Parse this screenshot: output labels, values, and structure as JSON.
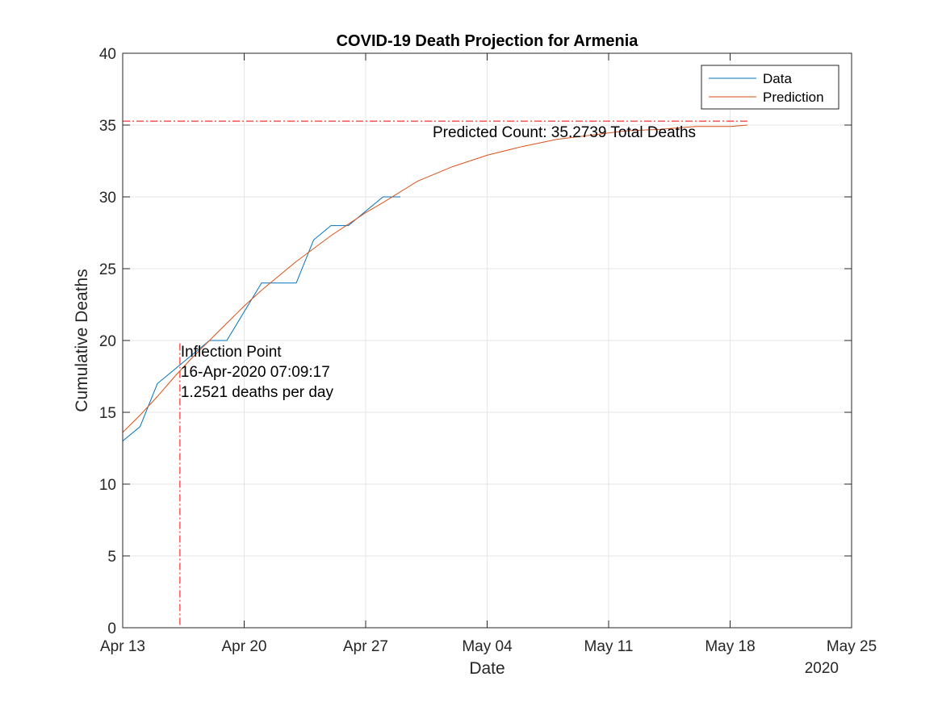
{
  "chart_data": {
    "type": "line",
    "title": "COVID-19 Death Projection for Armenia",
    "xlabel": "Date",
    "ylabel": "Cumulative Deaths",
    "x_axis_year_label": "2020",
    "xlim": [
      "2020-04-13",
      "2020-05-25"
    ],
    "ylim": [
      0,
      40
    ],
    "x_ticks": [
      {
        "date": "2020-04-13",
        "label": "Apr 13"
      },
      {
        "date": "2020-04-20",
        "label": "Apr 20"
      },
      {
        "date": "2020-04-27",
        "label": "Apr 27"
      },
      {
        "date": "2020-05-04",
        "label": "May 04"
      },
      {
        "date": "2020-05-11",
        "label": "May 11"
      },
      {
        "date": "2020-05-18",
        "label": "May 18"
      },
      {
        "date": "2020-05-25",
        "label": "May 25"
      }
    ],
    "y_ticks": [
      0,
      5,
      10,
      15,
      20,
      25,
      30,
      35,
      40
    ],
    "grid": true,
    "legend_position": "top-right",
    "series": [
      {
        "name": "Data",
        "color": "#0072BD",
        "x": [
          "2020-04-13",
          "2020-04-14",
          "2020-04-15",
          "2020-04-16",
          "2020-04-17",
          "2020-04-18",
          "2020-04-19",
          "2020-04-20",
          "2020-04-21",
          "2020-04-22",
          "2020-04-23",
          "2020-04-24",
          "2020-04-25",
          "2020-04-26",
          "2020-04-27",
          "2020-04-28",
          "2020-04-29"
        ],
        "y": [
          13,
          14,
          17,
          18,
          19,
          20,
          20,
          22,
          24,
          24,
          24,
          27,
          28,
          28,
          29,
          30,
          30
        ]
      },
      {
        "name": "Prediction",
        "color": "#D95319",
        "x": [
          "2020-04-13",
          "2020-04-14",
          "2020-04-15",
          "2020-04-16",
          "2020-04-17",
          "2020-04-18",
          "2020-04-19",
          "2020-04-20",
          "2020-04-21",
          "2020-04-22",
          "2020-04-23",
          "2020-04-24",
          "2020-04-25",
          "2020-04-26",
          "2020-04-27",
          "2020-04-28",
          "2020-04-30",
          "2020-05-02",
          "2020-05-04",
          "2020-05-06",
          "2020-05-08",
          "2020-05-10",
          "2020-05-12",
          "2020-05-14",
          "2020-05-16",
          "2020-05-18",
          "2020-05-19"
        ],
        "y": [
          13.6,
          14.8,
          16.1,
          17.5,
          18.8,
          20.0,
          21.2,
          22.4,
          23.5,
          24.5,
          25.5,
          26.4,
          27.3,
          28.1,
          28.9,
          29.6,
          31.1,
          32.1,
          32.9,
          33.5,
          34.0,
          34.3,
          34.6,
          34.7,
          34.9,
          34.9,
          35.0
        ]
      }
    ],
    "reference_lines": [
      {
        "orientation": "horizontal",
        "y": 35.2739,
        "x_end": "2020-05-19",
        "color": "#FF0000",
        "style": "dash-dot"
      },
      {
        "orientation": "vertical",
        "x": "2020-04-16T07:09:17",
        "color": "#FF0000",
        "style": "dash-dot"
      }
    ],
    "annotations": {
      "inflection": {
        "x": "2020-04-16T07:09:17",
        "y": 19,
        "lines": [
          "Inflection Point",
          "16-Apr-2020 07:09:17",
          "1.2521 deaths per day"
        ]
      },
      "predicted": {
        "x": "2020-05-06",
        "y": 35,
        "text": "Predicted Count: 35.2739 Total Deaths"
      }
    }
  }
}
